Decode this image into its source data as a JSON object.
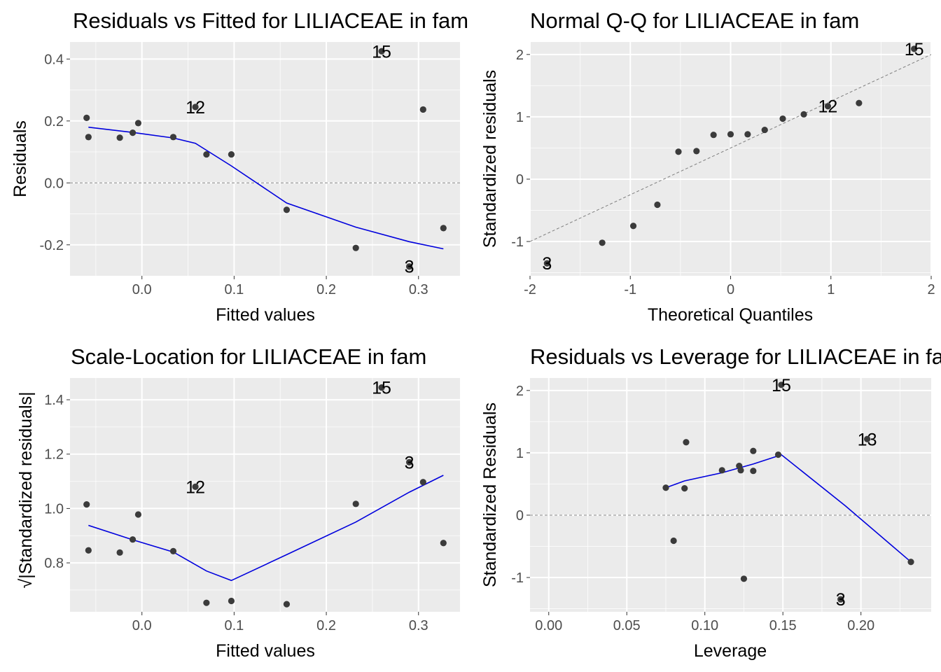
{
  "chart_data": [
    {
      "type": "scatter",
      "title": "Residuals vs Fitted for LILIACEAE in fam",
      "xlabel": "Fitted values",
      "ylabel": "Residuals",
      "xlim": [
        -0.078,
        0.345
      ],
      "ylim": [
        -0.3,
        0.455
      ],
      "xticks": [
        0.0,
        0.1,
        0.2,
        0.3
      ],
      "xtick_labels": [
        "0.0",
        "0.1",
        "0.2",
        "0.3"
      ],
      "yticks": [
        -0.2,
        0.0,
        0.2,
        0.4
      ],
      "ytick_labels": [
        "-0.2",
        "0.0",
        "0.2",
        "0.4"
      ],
      "grid": true,
      "points": [
        {
          "x": -0.06,
          "y": 0.21
        },
        {
          "x": -0.058,
          "y": 0.148
        },
        {
          "x": -0.024,
          "y": 0.146
        },
        {
          "x": -0.01,
          "y": 0.162
        },
        {
          "x": -0.004,
          "y": 0.193
        },
        {
          "x": 0.034,
          "y": 0.148
        },
        {
          "x": 0.058,
          "y": 0.245
        },
        {
          "x": 0.07,
          "y": 0.092
        },
        {
          "x": 0.097,
          "y": 0.092
        },
        {
          "x": 0.157,
          "y": -0.087
        },
        {
          "x": 0.232,
          "y": -0.21
        },
        {
          "x": 0.26,
          "y": 0.425
        },
        {
          "x": 0.29,
          "y": -0.27
        },
        {
          "x": 0.305,
          "y": 0.237
        },
        {
          "x": 0.327,
          "y": -0.146
        }
      ],
      "point_labels": [
        {
          "x": 0.26,
          "y": 0.425,
          "label": "15"
        },
        {
          "x": 0.058,
          "y": 0.245,
          "label": "12"
        },
        {
          "x": 0.29,
          "y": -0.27,
          "label": "3"
        }
      ],
      "smooth_line": {
        "x": [
          -0.058,
          -0.01,
          0.034,
          0.058,
          0.097,
          0.157,
          0.232,
          0.29,
          0.327
        ],
        "y": [
          0.18,
          0.163,
          0.145,
          0.128,
          0.055,
          -0.065,
          -0.143,
          -0.19,
          -0.213
        ]
      },
      "reference_line": {
        "kind": "horizontal",
        "y": 0.0,
        "style": "dashed"
      }
    },
    {
      "type": "scatter",
      "title": "Normal Q-Q for LILIACEAE in fam",
      "xlabel": "Theoretical Quantiles",
      "ylabel": "Standardized residuals",
      "xlim": [
        -2.0,
        2.0
      ],
      "ylim": [
        -1.55,
        2.2
      ],
      "xticks": [
        -2,
        -1,
        0,
        1,
        2
      ],
      "xtick_labels": [
        "-2",
        "-1",
        "0",
        "1",
        "2"
      ],
      "yticks": [
        -1,
        0,
        1,
        2
      ],
      "ytick_labels": [
        "-1",
        "0",
        "1",
        "2"
      ],
      "grid": true,
      "points": [
        {
          "x": -1.83,
          "y": -1.35
        },
        {
          "x": -1.28,
          "y": -1.02
        },
        {
          "x": -0.97,
          "y": -0.75
        },
        {
          "x": -0.73,
          "y": -0.41
        },
        {
          "x": -0.52,
          "y": 0.44
        },
        {
          "x": -0.34,
          "y": 0.45
        },
        {
          "x": -0.17,
          "y": 0.71
        },
        {
          "x": 0.0,
          "y": 0.72
        },
        {
          "x": 0.17,
          "y": 0.72
        },
        {
          "x": 0.34,
          "y": 0.79
        },
        {
          "x": 0.52,
          "y": 0.97
        },
        {
          "x": 0.73,
          "y": 1.04
        },
        {
          "x": 0.97,
          "y": 1.17
        },
        {
          "x": 1.28,
          "y": 1.22
        },
        {
          "x": 1.83,
          "y": 2.09
        }
      ],
      "point_labels": [
        {
          "x": 1.83,
          "y": 2.09,
          "label": "15"
        },
        {
          "x": 0.97,
          "y": 1.17,
          "label": "12"
        },
        {
          "x": -1.83,
          "y": -1.35,
          "label": "3"
        }
      ],
      "reference_line": {
        "kind": "abline",
        "intercept": 0.5,
        "slope": 0.75,
        "style": "dashed"
      }
    },
    {
      "type": "scatter",
      "title": "Scale-Location for LILIACEAE in fam",
      "xlabel": "Fitted values",
      "ylabel": "√|Standardized residuals|",
      "xlim": [
        -0.078,
        0.345
      ],
      "ylim": [
        0.62,
        1.48
      ],
      "xticks": [
        0.0,
        0.1,
        0.2,
        0.3
      ],
      "xtick_labels": [
        "0.0",
        "0.1",
        "0.2",
        "0.3"
      ],
      "yticks": [
        0.8,
        1.0,
        1.2,
        1.4
      ],
      "ytick_labels": [
        "0.8",
        "1.0",
        "1.2",
        "1.4"
      ],
      "grid": true,
      "points": [
        {
          "x": -0.06,
          "y": 1.015
        },
        {
          "x": -0.058,
          "y": 0.846
        },
        {
          "x": -0.024,
          "y": 0.838
        },
        {
          "x": -0.01,
          "y": 0.886
        },
        {
          "x": -0.004,
          "y": 0.978
        },
        {
          "x": 0.034,
          "y": 0.843
        },
        {
          "x": 0.058,
          "y": 1.08
        },
        {
          "x": 0.07,
          "y": 0.653
        },
        {
          "x": 0.097,
          "y": 0.66
        },
        {
          "x": 0.157,
          "y": 0.648
        },
        {
          "x": 0.232,
          "y": 1.017
        },
        {
          "x": 0.26,
          "y": 1.445
        },
        {
          "x": 0.29,
          "y": 1.17
        },
        {
          "x": 0.305,
          "y": 1.097
        },
        {
          "x": 0.327,
          "y": 0.873
        }
      ],
      "point_labels": [
        {
          "x": 0.26,
          "y": 1.445,
          "label": "15"
        },
        {
          "x": 0.29,
          "y": 1.17,
          "label": "3"
        },
        {
          "x": 0.058,
          "y": 1.08,
          "label": "12"
        }
      ],
      "smooth_line": {
        "x": [
          -0.058,
          -0.01,
          0.034,
          0.07,
          0.097,
          0.157,
          0.232,
          0.29,
          0.327
        ],
        "y": [
          0.938,
          0.885,
          0.84,
          0.77,
          0.735,
          0.83,
          0.95,
          1.06,
          1.122
        ]
      }
    },
    {
      "type": "scatter",
      "title": "Residuals vs Leverage for LILIACEAE in fam",
      "xlabel": "Leverage",
      "ylabel": "Standardized Residuals",
      "xlim": [
        -0.012,
        0.245
      ],
      "ylim": [
        -1.55,
        2.2
      ],
      "xticks": [
        0.0,
        0.05,
        0.1,
        0.15,
        0.2
      ],
      "xtick_labels": [
        "0.00",
        "0.05",
        "0.10",
        "0.15",
        "0.20"
      ],
      "yticks": [
        -1,
        0,
        1,
        2
      ],
      "ytick_labels": [
        "-1",
        "0",
        "1",
        "2"
      ],
      "grid": true,
      "points": [
        {
          "x": 0.075,
          "y": 0.44
        },
        {
          "x": 0.08,
          "y": -0.41
        },
        {
          "x": 0.087,
          "y": 0.43
        },
        {
          "x": 0.088,
          "y": 1.17
        },
        {
          "x": 0.111,
          "y": 0.72
        },
        {
          "x": 0.122,
          "y": 0.79
        },
        {
          "x": 0.123,
          "y": 0.72
        },
        {
          "x": 0.125,
          "y": -1.02
        },
        {
          "x": 0.131,
          "y": 0.71
        },
        {
          "x": 0.131,
          "y": 1.03
        },
        {
          "x": 0.147,
          "y": 0.97
        },
        {
          "x": 0.149,
          "y": 2.09
        },
        {
          "x": 0.187,
          "y": -1.35
        },
        {
          "x": 0.204,
          "y": 1.22
        },
        {
          "x": 0.232,
          "y": -0.75
        }
      ],
      "point_labels": [
        {
          "x": 0.149,
          "y": 2.09,
          "label": "15"
        },
        {
          "x": 0.204,
          "y": 1.22,
          "label": "13"
        },
        {
          "x": 0.187,
          "y": -1.35,
          "label": "3"
        }
      ],
      "smooth_line": {
        "x": [
          0.075,
          0.087,
          0.111,
          0.131,
          0.147,
          0.149,
          0.19,
          0.232
        ],
        "y": [
          0.44,
          0.55,
          0.68,
          0.82,
          0.95,
          0.97,
          0.15,
          -0.75
        ]
      },
      "reference_line": {
        "kind": "horizontal",
        "y": 0.0,
        "style": "dashed"
      }
    }
  ]
}
